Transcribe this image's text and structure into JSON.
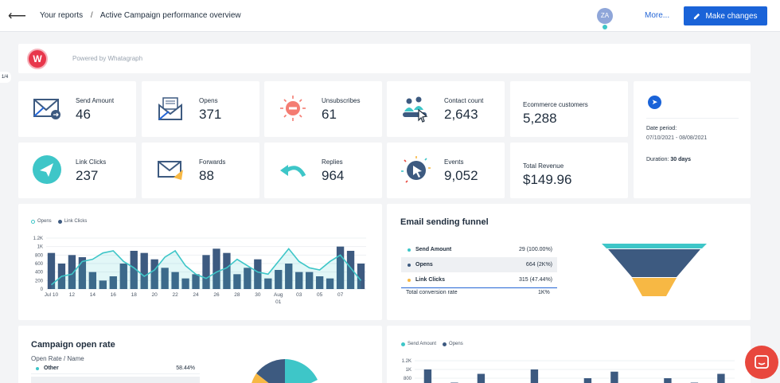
{
  "header": {
    "back_icon": "arrow-left-icon",
    "breadcrumb": [
      "Your reports",
      "Active Campaign performance overview"
    ],
    "separator": "/",
    "avatar_initials": "ZA",
    "more_label": "More...",
    "make_changes_label": "Make changes"
  },
  "brand": {
    "powered_by": "Powered by Whatagraph"
  },
  "pager": "1/4",
  "metrics": [
    {
      "label": "Send Amount",
      "value": "46",
      "icon": "envelope-send-icon"
    },
    {
      "label": "Opens",
      "value": "371",
      "icon": "open-envelope-icon"
    },
    {
      "label": "Unsubscribes",
      "value": "61",
      "icon": "minus-circle-icon"
    },
    {
      "label": "Contact count",
      "value": "2,643",
      "icon": "people-cursor-icon"
    },
    {
      "label": "Ecommerce customers",
      "value": "5,288"
    },
    {
      "label": "Link Clicks",
      "value": "237",
      "icon": "paper-plane-icon"
    },
    {
      "label": "Forwards",
      "value": "88",
      "icon": "forward-envelope-icon"
    },
    {
      "label": "Replies",
      "value": "964",
      "icon": "reply-arrow-icon"
    },
    {
      "label": "Events",
      "value": "9,052",
      "icon": "cursor-burst-icon"
    },
    {
      "label": "Total Revenue",
      "value": "$149.96"
    }
  ],
  "date_card": {
    "period_label": "Date period:",
    "period_value": "07/10/2021 - 08/08/2021",
    "duration_label": "Duration:",
    "duration_value": "30 days"
  },
  "funnel": {
    "title": "Email sending funnel",
    "rows": [
      {
        "name": "Send Amount",
        "value": "29 (100.00%)",
        "color": "#3ec6c8"
      },
      {
        "name": "Opens",
        "value": "664 (2K%)",
        "color": "#3d5a80"
      },
      {
        "name": "Link Clicks",
        "value": "315 (47.44%)",
        "color": "#f7b844"
      }
    ],
    "total_label": "Total conversion rate",
    "total_value": "1K%"
  },
  "open_rate": {
    "title": "Campaign open rate",
    "header": "Open Rate / Name",
    "rows": [
      {
        "name": "Other",
        "value": "58.44%"
      }
    ]
  },
  "colors": {
    "teal": "#3ec6c8",
    "navy": "#3d5a80",
    "yellow": "#f7b844",
    "accent": "#1a63d8"
  },
  "chart_data": [
    {
      "type": "bar",
      "series": [
        {
          "name": "Opens",
          "kind": "line",
          "color": "#3ec6c8",
          "values": [
            100,
            300,
            350,
            650,
            700,
            850,
            900,
            650,
            500,
            300,
            450,
            750,
            900,
            550,
            350,
            250,
            400,
            500,
            700,
            550,
            400,
            350,
            650,
            950,
            650,
            500,
            450,
            650,
            800,
            500,
            200
          ]
        },
        {
          "name": "Link Clicks",
          "kind": "bar",
          "color": "#3d5a80",
          "values": [
            850,
            600,
            800,
            750,
            400,
            200,
            300,
            600,
            900,
            850,
            700,
            500,
            400,
            250,
            350,
            800,
            950,
            850,
            350,
            500,
            700,
            250,
            450,
            600,
            400,
            400,
            300,
            250,
            1000,
            900,
            600
          ]
        }
      ],
      "ylim": [
        0,
        1200
      ],
      "yticks": [
        "1.2K",
        "1K",
        "800",
        "600",
        "400",
        "200",
        "0"
      ],
      "xticks": [
        "Jul 10",
        "12",
        "14",
        "16",
        "18",
        "20",
        "22",
        "24",
        "26",
        "28",
        "30",
        "Aug",
        "03",
        "05",
        "07"
      ],
      "xticks_sub": {
        "Aug": "01"
      }
    },
    {
      "type": "bar",
      "series": [
        {
          "name": "Send Amount",
          "color": "#3ec6c8"
        },
        {
          "name": "Opens",
          "color": "#3d5a80",
          "values": [
            1000,
            700,
            900,
            550,
            1000,
            650,
            800,
            950,
            500,
            800,
            700,
            900
          ]
        }
      ],
      "yticks": [
        "1.2K",
        "1K",
        "800"
      ]
    },
    {
      "type": "pie",
      "slices": [
        {
          "name": "Other",
          "value": 58.44,
          "color": "#3ec6c8"
        }
      ]
    }
  ]
}
